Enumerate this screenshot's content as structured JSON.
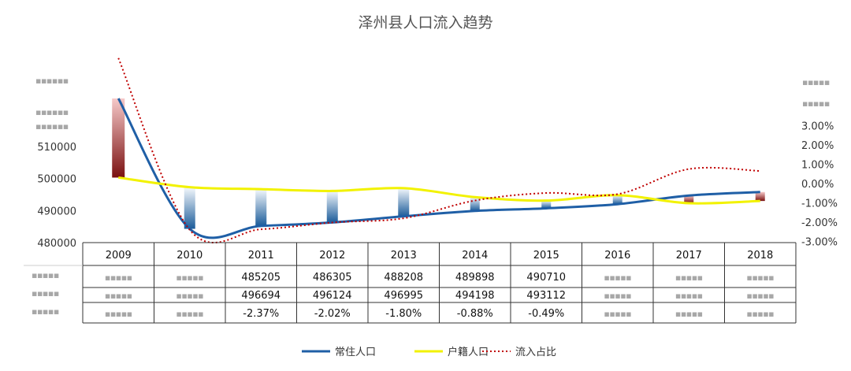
{
  "chart_data": {
    "type": "bar+line",
    "title": "泽州县人口流入趋势",
    "categories": [
      "2009",
      "2010",
      "2011",
      "2012",
      "2013",
      "2014",
      "2015",
      "2016",
      "2017",
      "2018"
    ],
    "series": [
      {
        "name": "常住人口",
        "axis": "left",
        "color": "#1f5fa6",
        "values": [
          525000,
          484300,
          485205,
          486305,
          488208,
          489898,
          490710,
          492000,
          494700,
          495800
        ]
      },
      {
        "name": "户籍人口",
        "axis": "left",
        "color": "#f2f200",
        "values": [
          500300,
          497300,
          496694,
          496124,
          496995,
          494198,
          493112,
          494800,
          492300,
          493000
        ]
      },
      {
        "name": "流入占比",
        "axis": "right",
        "color": "#c00000",
        "values": [
          6.5,
          -2.4,
          -2.37,
          -2.02,
          -1.8,
          -0.88,
          -0.49,
          -0.55,
          0.75,
          0.65
        ]
      }
    ],
    "bars": {
      "note": "gradient bars spanning 常住人口 to 户籍人口 each year"
    },
    "yaxis_left": {
      "ticks": [
        "480000",
        "490000",
        "500000",
        "510000"
      ],
      "ylim": [
        480000,
        525000
      ]
    },
    "yaxis_right": {
      "ticks": [
        "-3.00%",
        "-2.00%",
        "-1.00%",
        "0.00%",
        "1.00%",
        "2.00%",
        "3.00%"
      ],
      "ylim": [
        -3,
        6.5
      ]
    },
    "table": {
      "rows": [
        {
          "series": "常住人口",
          "cells": [
            "",
            "",
            "485205",
            "486305",
            "488208",
            "489898",
            "490710",
            "",
            "",
            ""
          ]
        },
        {
          "series": "户籍人口",
          "cells": [
            "",
            "",
            "496694",
            "496124",
            "496995",
            "494198",
            "493112",
            "",
            "",
            ""
          ]
        },
        {
          "series": "流入占比",
          "cells": [
            "",
            "",
            "-2.37%",
            "-2.02%",
            "-1.80%",
            "-0.88%",
            "-0.49%",
            "",
            "",
            ""
          ]
        }
      ]
    },
    "legend": {
      "position": "bottom"
    },
    "grid": false
  }
}
